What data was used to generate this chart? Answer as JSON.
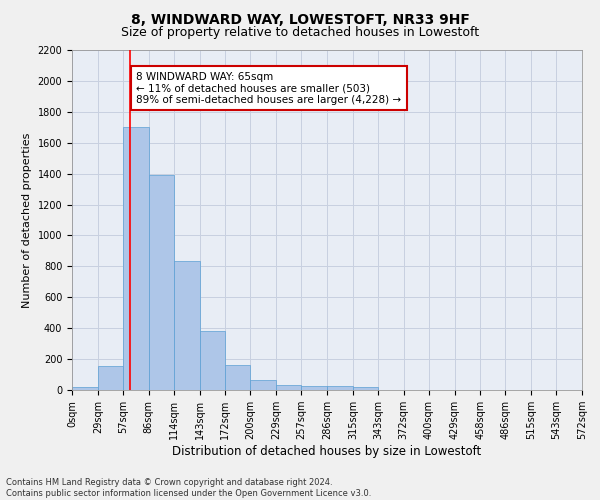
{
  "title": "8, WINDWARD WAY, LOWESTOFT, NR33 9HF",
  "subtitle": "Size of property relative to detached houses in Lowestoft",
  "xlabel": "Distribution of detached houses by size in Lowestoft",
  "ylabel": "Number of detached properties",
  "footer_line1": "Contains HM Land Registry data © Crown copyright and database right 2024.",
  "footer_line2": "Contains public sector information licensed under the Open Government Licence v3.0.",
  "bin_edges": [
    0,
    29,
    57,
    86,
    114,
    143,
    172,
    200,
    229,
    257,
    286,
    315,
    343,
    372,
    400,
    429,
    458,
    486,
    515,
    543,
    572
  ],
  "bar_heights": [
    20,
    155,
    1700,
    1390,
    835,
    385,
    165,
    65,
    35,
    28,
    28,
    18,
    0,
    0,
    0,
    0,
    0,
    0,
    0,
    0
  ],
  "bar_color": "#aec6e8",
  "bar_edgecolor": "#5a9fd4",
  "grid_color": "#c8d0e0",
  "bg_color": "#e8edf5",
  "fig_bg_color": "#f0f0f0",
  "red_line_x": 65,
  "annotation_text": "8 WINDWARD WAY: 65sqm\n← 11% of detached houses are smaller (503)\n89% of semi-detached houses are larger (4,228) →",
  "annotation_box_color": "#ffffff",
  "annotation_box_edgecolor": "#cc0000",
  "ylim_max": 2200,
  "yticks": [
    0,
    200,
    400,
    600,
    800,
    1000,
    1200,
    1400,
    1600,
    1800,
    2000,
    2200
  ],
  "tick_labels": [
    "0sqm",
    "29sqm",
    "57sqm",
    "86sqm",
    "114sqm",
    "143sqm",
    "172sqm",
    "200sqm",
    "229sqm",
    "257sqm",
    "286sqm",
    "315sqm",
    "343sqm",
    "372sqm",
    "400sqm",
    "429sqm",
    "458sqm",
    "486sqm",
    "515sqm",
    "543sqm",
    "572sqm"
  ],
  "title_fontsize": 10,
  "subtitle_fontsize": 9,
  "xlabel_fontsize": 8.5,
  "ylabel_fontsize": 8,
  "tick_fontsize": 7,
  "footer_fontsize": 6,
  "annotation_fontsize": 7.5
}
